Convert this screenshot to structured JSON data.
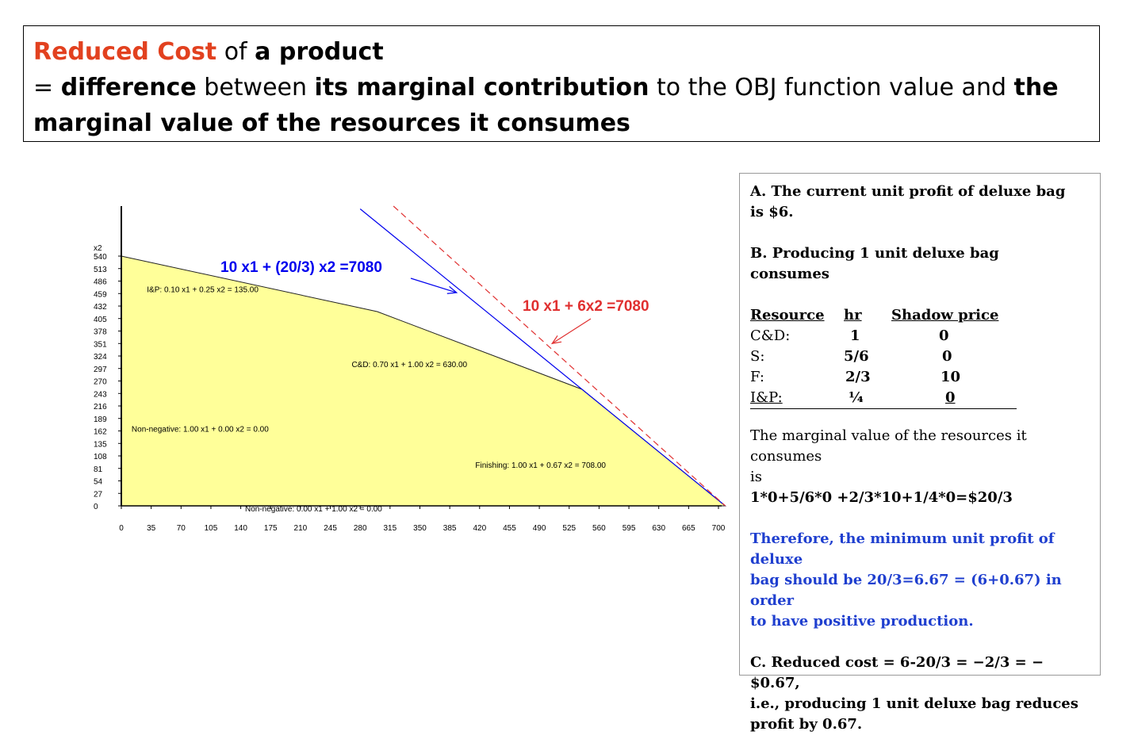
{
  "definition": {
    "line1": {
      "red": "Reduced Cost",
      "mid": " of ",
      "bold": "a product"
    },
    "line2": {
      "a": "= ",
      "b1": "difference",
      "c": " between ",
      "b2": "its marginal contribution",
      "d": " to the OBJ function value and ",
      "b3": "the"
    },
    "line3": {
      "b": "marginal value of the resources it consumes"
    }
  },
  "colors": {
    "accent_red": "#e2411f",
    "blue": "#1f3fcf",
    "feasible_fill": "#ffff99",
    "line_blue": "#0000ee",
    "line_red": "#e03030"
  },
  "chart_data": {
    "type": "line",
    "ylabel": "x2",
    "xlim": [
      0,
      700
    ],
    "ylim": [
      0,
      540
    ],
    "x_ticks": [
      0,
      35,
      70,
      105,
      140,
      175,
      210,
      245,
      280,
      315,
      350,
      385,
      420,
      455,
      490,
      525,
      560,
      595,
      630,
      665,
      700
    ],
    "y_ticks": [
      0,
      27,
      54,
      81,
      108,
      135,
      162,
      189,
      216,
      243,
      270,
      297,
      324,
      351,
      378,
      405,
      432,
      459,
      486,
      513,
      540
    ],
    "feasible_region": [
      [
        0,
        0
      ],
      [
        0,
        540
      ],
      [
        300,
        420
      ],
      [
        540,
        252
      ],
      [
        708,
        0
      ]
    ],
    "constraint_labels": [
      {
        "text": "I&P:  0.10 x1 +  0.25 x2 = 135.00",
        "at": [
          30,
          462
        ]
      },
      {
        "text": "C&D:  0.70 x1 +  1.00 x2 = 630.00",
        "at": [
          270,
          300
        ]
      },
      {
        "text": "Non-negative:  1.00 x1 +  0.00 x2 =  0.00",
        "at": [
          12,
          160
        ]
      },
      {
        "text": "Finishing:  1.00 x1 +  0.67 x2 = 708.00",
        "at": [
          415,
          82
        ]
      },
      {
        "text": "Non-negative:  0.00 x1 +  1.00 x2 =  0.00",
        "at": [
          145,
          -12
        ]
      }
    ],
    "series": [
      {
        "name": "10 x1 + (20/3) x2 =7080",
        "points": [
          [
            280,
            642
          ],
          [
            708,
            0
          ]
        ],
        "color": "#0000ee",
        "dashed": false
      },
      {
        "name": "10 x1 + 6x2 =7080",
        "points": [
          [
            319,
            648
          ],
          [
            708,
            0
          ]
        ],
        "color": "#e03030",
        "dashed": true
      }
    ],
    "annotations": [
      {
        "text": "10 x1 + (20/3) x2 =7080",
        "color": "#0000ee",
        "arrow_to": [
          393,
          461
        ]
      },
      {
        "text": "10 x1 + 6x2 =7080",
        "color": "#e03030",
        "arrow_to": [
          505,
          351
        ]
      }
    ]
  },
  "panel": {
    "a_line1": "A. The current unit profit of deluxe bag",
    "a_line2": "is $6.",
    "b_line1": "B. Producing 1 unit deluxe bag",
    "b_line2": "consumes",
    "table_headers": [
      "Resource",
      "hr",
      "Shadow price"
    ],
    "table_rows": [
      [
        "C&D:",
        "1",
        "0"
      ],
      [
        "S:",
        "5/6",
        "0"
      ],
      [
        "F:",
        "2/3",
        "10"
      ],
      [
        "I&P:",
        "¼",
        "0"
      ]
    ],
    "mv_line1": "The marginal value of the resources it consumes",
    "mv_line2": "is",
    "mv_formula": "1*0+5/6*0 +2/3*10+1/4*0=$20/3",
    "t_line1": "Therefore, the minimum unit profit of deluxe",
    "t_line2": "bag should be 20/3=6.67 = (6+0.67)  in order",
    "t_line3": "to have positive production.",
    "c_line1": "C. Reduced cost = 6-20/3 = −2/3 = −$0.67,",
    "c_line2": "i.e., producing 1 unit deluxe bag reduces",
    "c_line3": "profit by 0.67."
  }
}
